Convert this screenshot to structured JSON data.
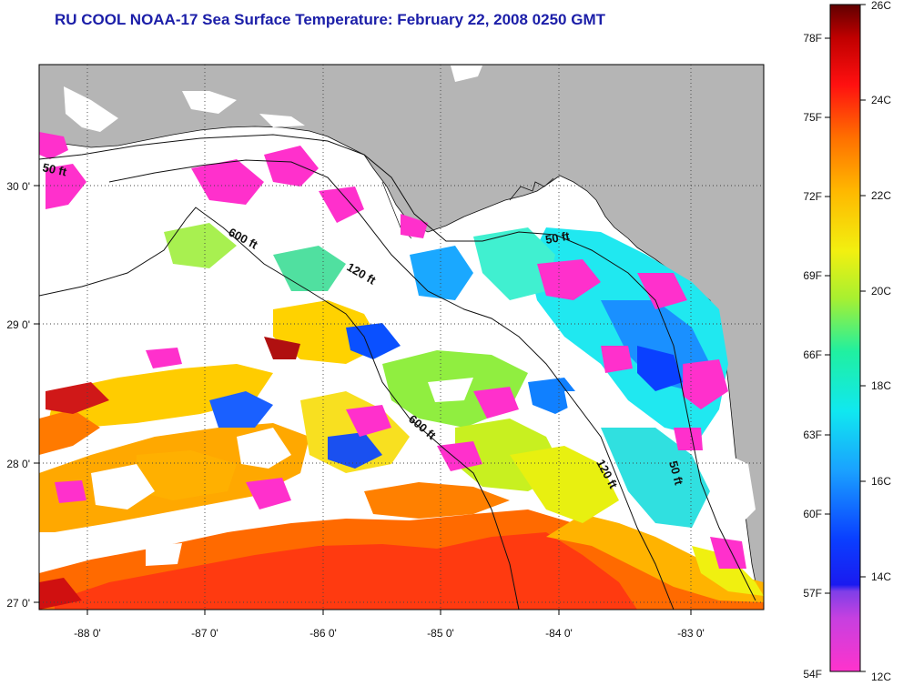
{
  "title": "RU COOL  NOAA-17  Sea Surface Temperature:  February 22, 2008 0250 GMT",
  "map": {
    "lon_ticks": [
      "-88 0'",
      "-87 0'",
      "-86 0'",
      "-85 0'",
      "-84 0'",
      "-83 0'"
    ],
    "lat_ticks": [
      "30 0'",
      "29 0'",
      "28 0'",
      "27 0'"
    ],
    "contour_labels": [
      {
        "id": "contour-label-50ft-west",
        "text": "50 ft"
      },
      {
        "id": "contour-label-600ft-north",
        "text": "600 ft"
      },
      {
        "id": "contour-label-120ft-north",
        "text": "120 ft"
      },
      {
        "id": "contour-label-50ft-bigbend",
        "text": "50 ft"
      },
      {
        "id": "contour-label-600ft-south",
        "text": "600 ft"
      },
      {
        "id": "contour-label-120ft-south",
        "text": "120 ft"
      },
      {
        "id": "contour-label-50ft-south",
        "text": "50 ft"
      }
    ],
    "colors": {
      "land": "#b5b5b5",
      "cloud": "#ffffff",
      "grid": "#555555"
    }
  },
  "colorbar": {
    "fahrenheit": [
      "78F",
      "75F",
      "72F",
      "69F",
      "66F",
      "63F",
      "60F",
      "57F",
      "54F"
    ],
    "celsius": [
      "26C",
      "24C",
      "22C",
      "20C",
      "18C",
      "16C",
      "14C",
      "12C"
    ]
  }
}
